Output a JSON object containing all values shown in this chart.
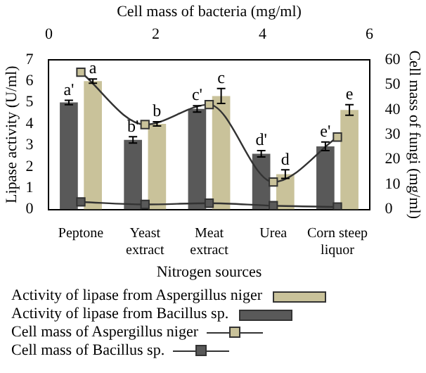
{
  "chart_data": {
    "type": "bar",
    "xlabel": "Nitrogen sources",
    "ylabel": "Lipase activity (U/ml)",
    "y2label": "Cell mass of fungi (mg/ml)",
    "x2label": "Cell mass of bacteria (mg/ml)",
    "categories": [
      "Peptone",
      "Yeast extract",
      "Meat extract",
      "Urea",
      "Corn steep liquor"
    ],
    "series": [
      {
        "name": "Activity of lipase from Bacillus sp.",
        "type": "bar",
        "color": "#595959",
        "values": [
          5.0,
          3.25,
          4.7,
          2.6,
          2.95
        ],
        "errors": [
          0.1,
          0.15,
          0.15,
          0.15,
          0.2
        ],
        "value_labels": [
          "a'",
          "b'",
          "c'",
          "d'",
          "e'"
        ]
      },
      {
        "name": "Activity of lipase from Aspergillus niger",
        "type": "bar",
        "color": "#c9c29a",
        "values": [
          6.0,
          4.0,
          5.3,
          1.65,
          4.65
        ],
        "errors": [
          0.1,
          0.1,
          0.35,
          0.2,
          0.25
        ],
        "value_labels": [
          "a",
          "b",
          "c",
          "d",
          "e"
        ]
      },
      {
        "name": "Cell mass of Aspergillus niger",
        "type": "line",
        "axis": "y2",
        "color": "#c9c29a",
        "values": [
          55,
          34,
          42,
          11,
          29
        ]
      },
      {
        "name": "Cell mass of Bacillus sp.",
        "type": "line",
        "axis": "y2",
        "color": "#595959",
        "values": [
          3,
          2,
          2.5,
          1.5,
          1
        ]
      }
    ],
    "ylim": [
      0,
      7
    ],
    "yticks": [
      0,
      1,
      2,
      3,
      4,
      5,
      6,
      7
    ],
    "y2lim": [
      0,
      60
    ],
    "y2ticks": [
      0,
      10,
      20,
      30,
      40,
      50,
      60
    ],
    "x2lim": [
      0,
      6
    ],
    "x2ticks": [
      0,
      2,
      4,
      6
    ],
    "marker": "square",
    "grid": false,
    "legend": "bottom"
  }
}
